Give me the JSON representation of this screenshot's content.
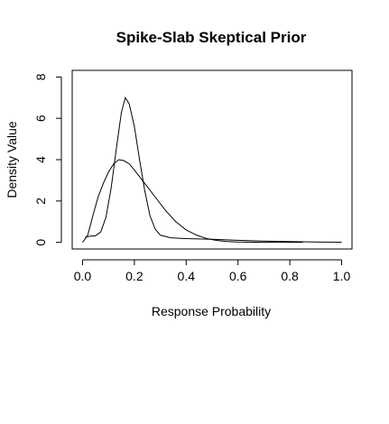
{
  "chart_data": {
    "type": "line",
    "title": "Spike-Slab Skeptical Prior",
    "xlabel": "Response Probability",
    "ylabel": "Density Value",
    "xlim": [
      -0.04,
      1.04
    ],
    "ylim": [
      -0.32,
      8.32
    ],
    "x_ticks": [
      0.0,
      0.2,
      0.4,
      0.6,
      0.8,
      1.0
    ],
    "x_tick_labels": [
      "0.0",
      "0.2",
      "0.4",
      "0.6",
      "0.8",
      "1.0"
    ],
    "y_ticks": [
      0,
      2,
      4,
      6,
      8
    ],
    "y_tick_labels": [
      "0",
      "2",
      "4",
      "6",
      "8"
    ],
    "grid": false,
    "series": [
      {
        "points": [
          [
            0.0,
            0.0
          ],
          [
            0.02,
            0.35
          ],
          [
            0.04,
            1.3
          ],
          [
            0.06,
            2.2
          ],
          [
            0.08,
            2.85
          ],
          [
            0.1,
            3.4
          ],
          [
            0.12,
            3.8
          ],
          [
            0.14,
            4.0
          ],
          [
            0.16,
            3.95
          ],
          [
            0.18,
            3.8
          ],
          [
            0.2,
            3.5
          ],
          [
            0.24,
            2.85
          ],
          [
            0.28,
            2.2
          ],
          [
            0.32,
            1.55
          ],
          [
            0.36,
            1.0
          ],
          [
            0.4,
            0.6
          ],
          [
            0.44,
            0.35
          ],
          [
            0.48,
            0.18
          ],
          [
            0.52,
            0.09
          ],
          [
            0.56,
            0.04
          ],
          [
            0.6,
            0.02
          ],
          [
            0.7,
            0.0
          ],
          [
            0.8,
            0.0
          ],
          [
            0.85,
            0.0
          ]
        ]
      },
      {
        "points": [
          [
            0.01,
            0.25
          ],
          [
            0.03,
            0.3
          ],
          [
            0.05,
            0.32
          ],
          [
            0.07,
            0.5
          ],
          [
            0.09,
            1.2
          ],
          [
            0.11,
            2.6
          ],
          [
            0.13,
            4.5
          ],
          [
            0.15,
            6.3
          ],
          [
            0.165,
            7.0
          ],
          [
            0.18,
            6.7
          ],
          [
            0.2,
            5.6
          ],
          [
            0.22,
            4.0
          ],
          [
            0.24,
            2.5
          ],
          [
            0.26,
            1.3
          ],
          [
            0.28,
            0.65
          ],
          [
            0.3,
            0.35
          ],
          [
            0.34,
            0.22
          ],
          [
            0.4,
            0.18
          ],
          [
            0.5,
            0.15
          ],
          [
            0.6,
            0.1
          ],
          [
            0.7,
            0.06
          ],
          [
            0.8,
            0.04
          ],
          [
            0.9,
            0.02
          ],
          [
            1.0,
            0.01
          ]
        ]
      }
    ]
  }
}
